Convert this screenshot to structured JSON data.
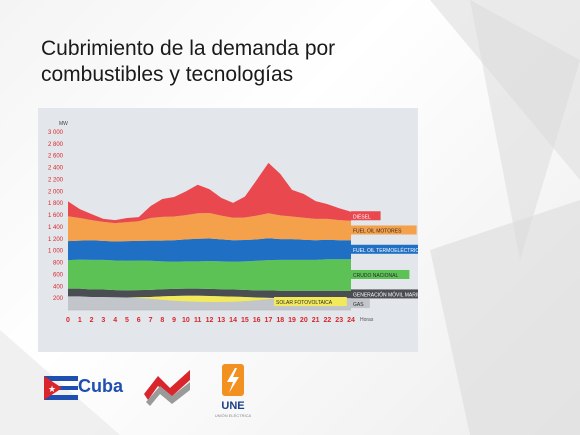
{
  "slide": {
    "title_line1": "Cubrimiento de la demanda por",
    "title_line2": "combustibles y tecnologías"
  },
  "logos": {
    "cuba_label": "Cuba",
    "une_label": "UNE",
    "une_sub": "UNIÓN ELÉCTRICA"
  },
  "colors": {
    "gas": "#c2c6ca",
    "generacion_movil": "#4a4d52",
    "crudo": "#5cc255",
    "fuel_termo": "#1f6fc4",
    "fuel_motores": "#f5a04a",
    "diesel": "#e8484e",
    "solar": "#f2ea5a"
  },
  "chart_data": {
    "type": "area",
    "stacked": true,
    "ylabel": "MW",
    "xlabel": "Horas",
    "ylim": [
      0,
      3000
    ],
    "yticks": [
      200,
      400,
      600,
      800,
      1000,
      1200,
      1400,
      1600,
      1800,
      2000,
      2200,
      2400,
      2600,
      2800,
      3000
    ],
    "ytick_labels": [
      "200",
      "400",
      "600",
      "800",
      "1 000",
      "1 200",
      "1 400",
      "1 600",
      "1 800",
      "2 000",
      "2 200",
      "2 400",
      "2 600",
      "2 800",
      "3 000"
    ],
    "x": [
      0,
      1,
      2,
      3,
      4,
      5,
      6,
      7,
      8,
      9,
      10,
      11,
      12,
      13,
      14,
      15,
      16,
      17,
      18,
      19,
      20,
      21,
      22,
      23,
      24
    ],
    "legend_position": "right",
    "series": [
      {
        "name": "GAS",
        "key": "gas",
        "values": [
          230,
          230,
          220,
          220,
          215,
          210,
          215,
          220,
          230,
          235,
          240,
          240,
          235,
          230,
          225,
          220,
          210,
          205,
          200,
          200,
          200,
          200,
          200,
          200,
          200
        ]
      },
      {
        "name": "SOLAR FOTOVOLTAICA",
        "key": "solar",
        "values": [
          0,
          0,
          0,
          0,
          0,
          0,
          10,
          30,
          60,
          80,
          95,
          100,
          100,
          95,
          85,
          70,
          45,
          20,
          5,
          0,
          0,
          0,
          0,
          0,
          0
        ]
      },
      {
        "name": "GENERACIÓN MÓVIL MARIEL",
        "key": "generacion_movil",
        "values": [
          130,
          130,
          125,
          125,
          120,
          120,
          120,
          120,
          120,
          120,
          120,
          120,
          120,
          120,
          120,
          120,
          120,
          125,
          125,
          125,
          125,
          125,
          125,
          125,
          125
        ]
      },
      {
        "name": "CRUDO NACIONAL",
        "key": "crudo",
        "values": [
          480,
          490,
          500,
          500,
          500,
          500,
          500,
          490,
          470,
          460,
          460,
          460,
          470,
          470,
          470,
          480,
          500,
          510,
          520,
          520,
          520,
          520,
          530,
          530,
          530
        ]
      },
      {
        "name": "FUEL OIL TERMOELÉCTRICAS",
        "key": "fuel_termo",
        "values": [
          320,
          320,
          330,
          320,
          320,
          330,
          330,
          340,
          350,
          360,
          370,
          380,
          380,
          370,
          360,
          360,
          360,
          370,
          350,
          350,
          340,
          330,
          330,
          320,
          320
        ]
      },
      {
        "name": "FUEL OIL MOTORES",
        "key": "fuel_motores",
        "values": [
          420,
          380,
          340,
          320,
          310,
          320,
          330,
          380,
          400,
          400,
          410,
          430,
          430,
          400,
          380,
          380,
          400,
          420,
          400,
          380,
          370,
          360,
          350,
          340,
          330
        ]
      },
      {
        "name": "DIÉSEL",
        "key": "diesel",
        "values": [
          250,
          150,
          100,
          50,
          50,
          70,
          70,
          200,
          300,
          330,
          400,
          480,
          400,
          300,
          250,
          350,
          600,
          850,
          700,
          450,
          400,
          300,
          250,
          200,
          150
        ]
      }
    ],
    "legend": [
      {
        "label": "DIÉSEL",
        "key": "diesel"
      },
      {
        "label": "FUEL OIL MOTORES",
        "key": "fuel_motores"
      },
      {
        "label": "FUEL OIL TERMOELÉCTRICAS",
        "key": "fuel_termo"
      },
      {
        "label": "CRUDO NACIONAL",
        "key": "crudo"
      },
      {
        "label": "GENERACIÓN MÓVIL MARIEL",
        "key": "generacion_movil"
      },
      {
        "label": "SOLAR FOTOVOLTAICA",
        "key": "solar"
      },
      {
        "label": "GAS",
        "key": "gas"
      }
    ]
  }
}
